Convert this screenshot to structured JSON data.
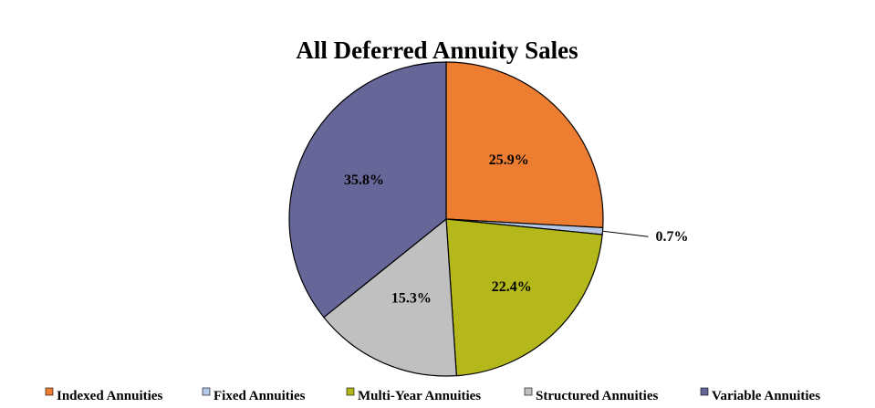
{
  "chart_data": {
    "type": "pie",
    "title": "All Deferred Annuity Sales",
    "legend_position": "bottom",
    "slices": [
      {
        "name": "Indexed Annuities",
        "value": 25.9,
        "label": "25.9%",
        "color": "#ED7D31"
      },
      {
        "name": "Fixed Annuities",
        "value": 0.7,
        "label": "0.7%",
        "color": "#B4C7E7"
      },
      {
        "name": "Multi-Year Annuities",
        "value": 22.4,
        "label": "22.4%",
        "color": "#B5B81A"
      },
      {
        "name": "Structured Annuities",
        "value": 15.3,
        "label": "15.3%",
        "color": "#C0C0C0"
      },
      {
        "name": "Variable Annuities",
        "value": 35.8,
        "label": "35.8%",
        "color": "#666699"
      }
    ]
  }
}
